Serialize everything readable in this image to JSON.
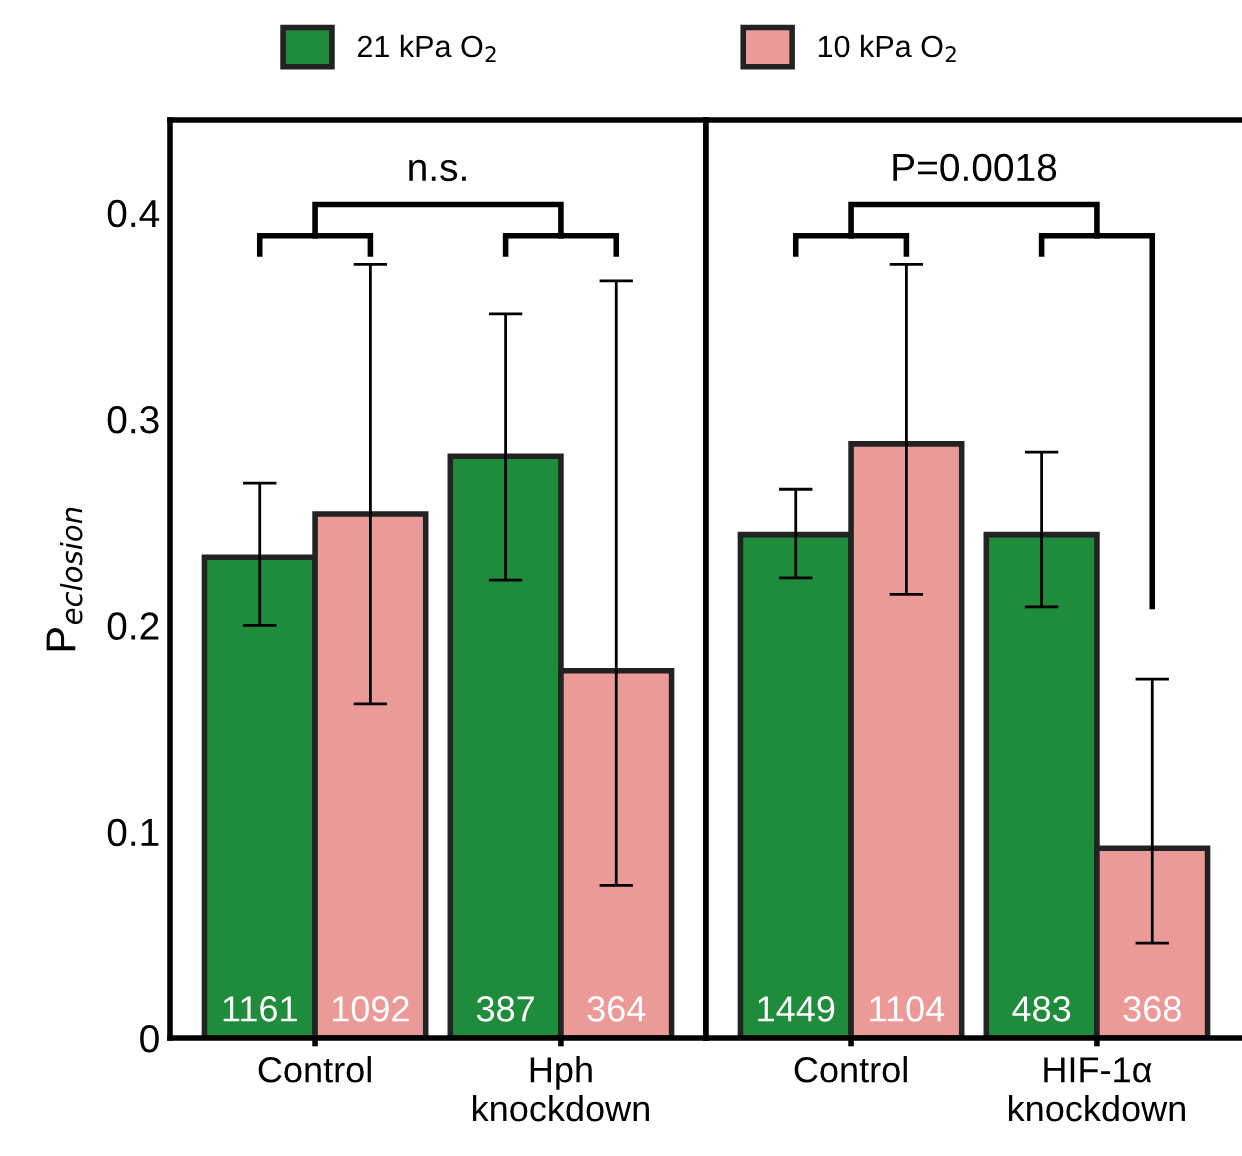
{
  "chart_data": [
    {
      "type": "bar",
      "categories": [
        "Control",
        "Hph\nknockdown"
      ],
      "ylabel": "P$_{eclosion}$",
      "ylim": [
        0,
        0.445
      ],
      "yticks": [
        0,
        0.1,
        0.2,
        0.3,
        0.4
      ],
      "legend": "top",
      "grid": false,
      "series": [
        {
          "name": "21 kPa O$_{2}$",
          "color": "#1e8c3a",
          "values": [
            0.233,
            0.282
          ],
          "errors": [
            [
              0.2,
              0.269
            ],
            [
              0.222,
              0.351
            ]
          ]
        },
        {
          "name": "10 kPa O$_{2}$",
          "color": "#ec9a98",
          "values": [
            0.254,
            0.178
          ],
          "errors": [
            [
              0.162,
              0.375
            ],
            [
              0.074,
              0.367
            ]
          ]
        }
      ],
      "annotations": [
        "n.s.",
        "1161",
        "1092",
        "387",
        "364"
      ]
    },
    {
      "type": "bar",
      "categories": [
        "Control",
        "HIF-1α\nknockdown"
      ],
      "ylim": [
        0,
        0.445
      ],
      "tick_labels": "x",
      "grid": false,
      "series": [
        {
          "color": "#1e8c3a",
          "values": [
            0.244,
            0.244
          ],
          "errors": [
            [
              0.223,
              0.266
            ],
            [
              0.209,
              0.284
            ]
          ]
        },
        {
          "color": "#ec9a98",
          "values": [
            0.288,
            0.092
          ],
          "errors": [
            [
              0.215,
              0.375
            ],
            [
              0.046,
              0.174
            ]
          ]
        }
      ],
      "annotations": [
        "P=0.0018",
        "1449",
        "1104",
        "483",
        "368"
      ]
    }
  ]
}
